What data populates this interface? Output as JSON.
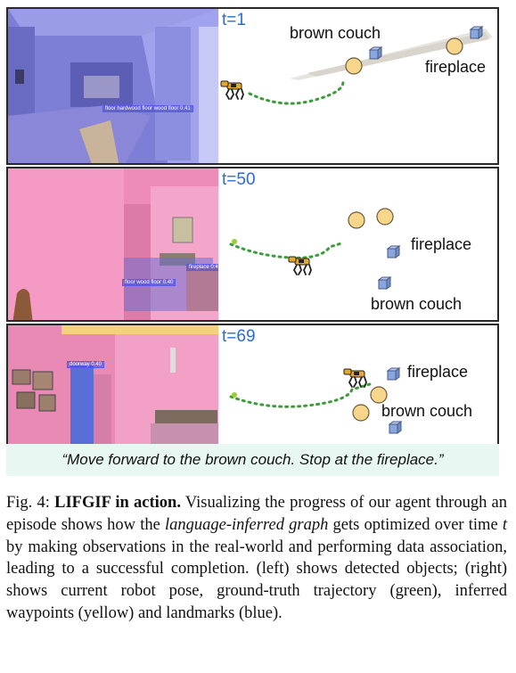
{
  "panels": [
    {
      "time_label": "t=1",
      "graph_labels": {
        "couch": "brown couch",
        "fireplace": "fireplace"
      },
      "detections": [
        "floor  hardwood floor  wood floor  0.41"
      ]
    },
    {
      "time_label": "t=50",
      "graph_labels": {
        "fireplace": "fireplace",
        "couch": "brown couch"
      },
      "detections": [
        "fireplace 0.4",
        "floor  wood floor  0.40"
      ]
    },
    {
      "time_label": "t=69",
      "graph_labels": {
        "fireplace": "fireplace",
        "couch": "brown couch"
      },
      "detections": [
        "doorway 0.40"
      ]
    }
  ],
  "instruction": "“Move forward to the brown couch. Stop at the fireplace.”",
  "caption": {
    "fig_label": "Fig. 4: ",
    "title": "LIFGIF in action.",
    "seg1": " Visualizing the progress of our agent through an episode shows how the ",
    "em1": "language-inferred graph",
    "seg2": " gets optimized over time ",
    "em2": "t",
    "seg3": " by making observations in the real-world and performing data association, leading to a successful completion. (left) shows detected objects; (right) shows current robot pose, ground-truth trajectory (green), inferred waypoints (yellow) and landmarks (blue)."
  },
  "colors": {
    "waypoint": "#f7d58a",
    "landmark": "#8aa6e0",
    "trajectory": "#3c9c3c",
    "time_label": "#2a6bd6",
    "instruction_bg": "#e8f7f1",
    "robot": "#e6a82b"
  },
  "icons": [
    "robot-dog-icon",
    "waypoint-circle-icon",
    "landmark-cube-icon"
  ]
}
